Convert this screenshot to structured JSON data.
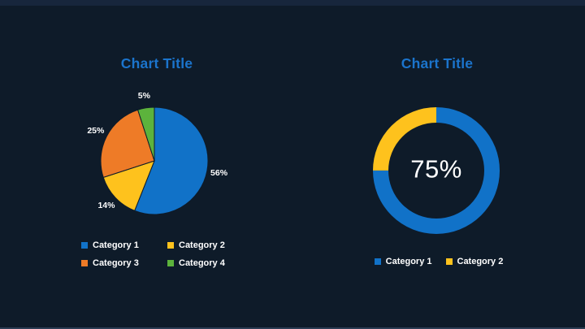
{
  "slide": {
    "background": "#0e1b29",
    "top_stripe_color": "#17263c",
    "bottom_stripe_color": "#2c3c53"
  },
  "colors": {
    "blue": "#1172c8",
    "yellow": "#fec21d",
    "orange": "#ee7b27",
    "green": "#5cb33c",
    "title": "#1b74cc",
    "text": "#ffffff"
  },
  "chart_data": [
    {
      "type": "pie",
      "title": "Chart Title",
      "legend_position": "bottom",
      "start_angle_deg": 0,
      "direction": "clockwise",
      "series": [
        {
          "name": "Category 1",
          "value": 56,
          "label": "56%",
          "color_key": "blue"
        },
        {
          "name": "Category 2",
          "value": 14,
          "label": "14%",
          "color_key": "yellow"
        },
        {
          "name": "Category 3",
          "value": 25,
          "label": "25%",
          "color_key": "orange"
        },
        {
          "name": "Category 4",
          "value": 5,
          "label": "5%",
          "color_key": "green"
        }
      ]
    },
    {
      "type": "pie",
      "subtype": "donut",
      "title": "Chart Title",
      "center_label": "75%",
      "legend_position": "bottom",
      "start_angle_deg": 0,
      "direction": "clockwise",
      "series": [
        {
          "name": "Category 1",
          "value": 75,
          "color_key": "blue"
        },
        {
          "name": "Category 2",
          "value": 25,
          "color_key": "yellow"
        }
      ]
    }
  ]
}
